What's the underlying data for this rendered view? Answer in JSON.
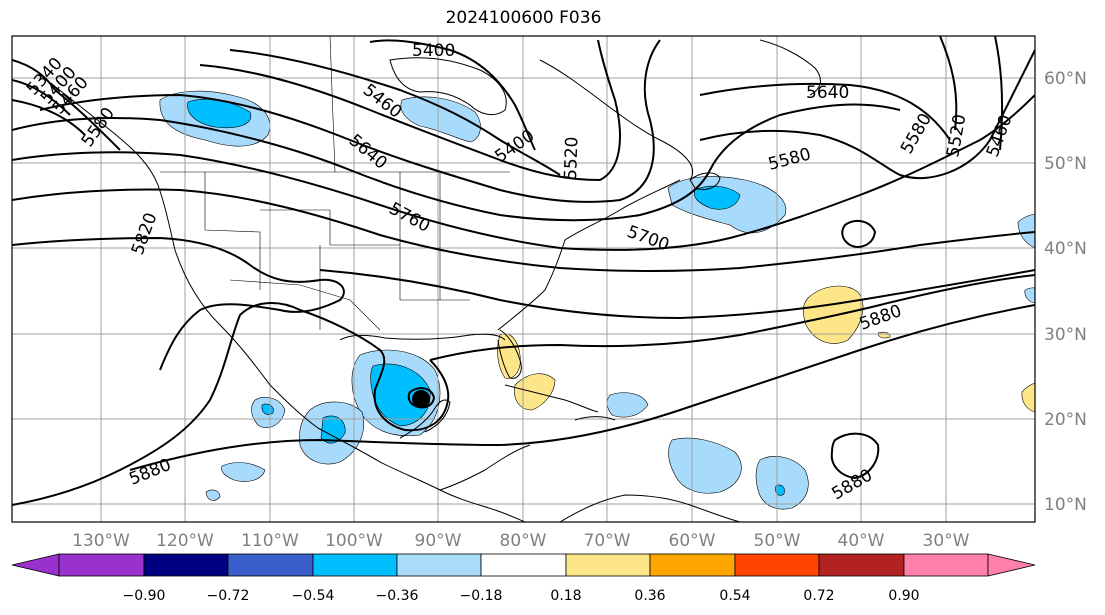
{
  "title": "2024100600 F036",
  "map": {
    "projection": "PlateCarree",
    "lon_range": [
      -140,
      -20
    ],
    "lat_range": [
      7,
      64
    ],
    "lon_labels": [
      "130°W",
      "120°W",
      "110°W",
      "100°W",
      "90°W",
      "80°W",
      "70°W",
      "60°W",
      "50°W",
      "40°W",
      "30°W"
    ],
    "lat_labels": [
      "60°N",
      "50°N",
      "40°N",
      "30°N",
      "20°N",
      "10°N"
    ],
    "grid": true,
    "contour_field": "500 hPa geopotential height",
    "contour_labels": [
      "5400",
      "5460",
      "5520",
      "5580",
      "5640",
      "5700",
      "5760",
      "5820",
      "5880",
      "5340",
      "5400",
      "5460",
      "5580",
      "5640",
      "5400",
      "5460",
      "5520",
      "5580",
      "5640",
      "5700",
      "5880",
      "5880",
      "5880",
      "5580",
      "5520",
      "5460",
      "5820"
    ],
    "shaded_field_colors": {
      "light_blue": "#a8dbfb",
      "blue": "#00bfff",
      "yellow": "#fde68a",
      "line": "#000000",
      "grid": "#a0a0a0"
    }
  },
  "colorbar": {
    "ticks": [
      "−0.90",
      "−0.72",
      "−0.54",
      "−0.36",
      "−0.18",
      "0.18",
      "0.36",
      "0.54",
      "0.72",
      "0.90"
    ],
    "colors": [
      "#9932cc",
      "#000080",
      "#3a5fcd",
      "#00bfff",
      "#aadcfa",
      "#ffffff",
      "#fde68a",
      "#ffa500",
      "#ff4500",
      "#b22222",
      "#ff80a8"
    ],
    "extend": "both"
  }
}
